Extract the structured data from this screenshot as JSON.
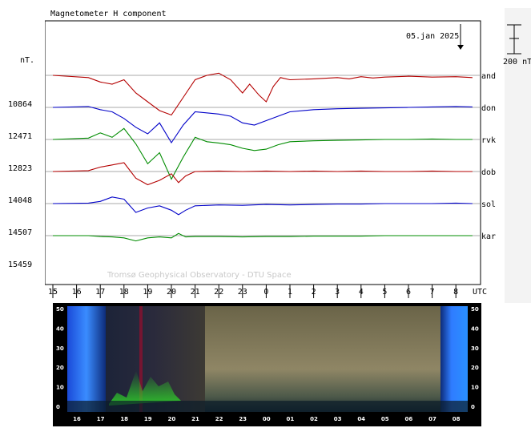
{
  "chart_data": {
    "type": "line",
    "title": "Magnetometer H component",
    "unit_label": "nT.",
    "scale_bar_label": "200 nT",
    "date_label": "05.jan 2025",
    "watermark": "Tromsø Geophysical Observatory - DTU Space",
    "x_ticks": [
      "15",
      "16",
      "17",
      "18",
      "19",
      "20",
      "21",
      "22",
      "23",
      "0",
      "1",
      "2",
      "3",
      "4",
      "5",
      "6",
      "7",
      "8"
    ],
    "x_unit": "UTC",
    "stations": [
      {
        "name": "and",
        "baseline": "",
        "color": "#b40000"
      },
      {
        "name": "don",
        "baseline": "10864",
        "color": "#0000c8"
      },
      {
        "name": "rvk",
        "baseline": "12471",
        "color": "#008c00"
      },
      {
        "name": "dob",
        "baseline": "12823",
        "color": "#b40000"
      },
      {
        "name": "sol",
        "baseline": "14048",
        "color": "#0000c8"
      },
      {
        "name": "kar",
        "baseline": "14507",
        "color": "#008c00"
      },
      {
        "name": "",
        "baseline": "15459",
        "color": "#000000"
      }
    ],
    "series_shape": {
      "and": [
        [
          15,
          0
        ],
        [
          16.5,
          -5
        ],
        [
          17,
          -15
        ],
        [
          17.5,
          -20
        ],
        [
          18,
          -10
        ],
        [
          18.5,
          -40
        ],
        [
          19,
          -60
        ],
        [
          19.5,
          -80
        ],
        [
          20,
          -90
        ],
        [
          20.5,
          -50
        ],
        [
          21,
          -10
        ],
        [
          21.5,
          0
        ],
        [
          22,
          5
        ],
        [
          22.5,
          -10
        ],
        [
          23,
          -40
        ],
        [
          23.3,
          -20
        ],
        [
          23.7,
          -45
        ],
        [
          24,
          -60
        ],
        [
          24.3,
          -25
        ],
        [
          24.6,
          -5
        ],
        [
          25,
          -10
        ],
        [
          26,
          -8
        ],
        [
          27,
          -5
        ],
        [
          27.5,
          -8
        ],
        [
          28,
          -3
        ],
        [
          28.5,
          -6
        ],
        [
          29,
          -4
        ],
        [
          30,
          -2
        ],
        [
          31,
          -4
        ],
        [
          32,
          -3
        ],
        [
          32.7,
          -5
        ]
      ],
      "don": [
        [
          15,
          0
        ],
        [
          16.5,
          2
        ],
        [
          17,
          -5
        ],
        [
          17.5,
          -10
        ],
        [
          18,
          -25
        ],
        [
          18.5,
          -45
        ],
        [
          19,
          -60
        ],
        [
          19.5,
          -35
        ],
        [
          20,
          -80
        ],
        [
          20.5,
          -40
        ],
        [
          21,
          -10
        ],
        [
          22,
          -15
        ],
        [
          22.5,
          -20
        ],
        [
          23,
          -35
        ],
        [
          23.5,
          -40
        ],
        [
          24,
          -30
        ],
        [
          24.5,
          -20
        ],
        [
          25,
          -10
        ],
        [
          26,
          -5
        ],
        [
          27,
          -3
        ],
        [
          28,
          -2
        ],
        [
          29,
          -1
        ],
        [
          30,
          0
        ],
        [
          31,
          1
        ],
        [
          32,
          2
        ],
        [
          32.7,
          1
        ]
      ],
      "rvk": [
        [
          15,
          0
        ],
        [
          16.5,
          3
        ],
        [
          17,
          15
        ],
        [
          17.5,
          5
        ],
        [
          18,
          25
        ],
        [
          18.5,
          -10
        ],
        [
          19,
          -55
        ],
        [
          19.5,
          -30
        ],
        [
          20,
          -90
        ],
        [
          20.5,
          -40
        ],
        [
          21,
          5
        ],
        [
          21.5,
          -5
        ],
        [
          22,
          -8
        ],
        [
          22.5,
          -12
        ],
        [
          23,
          -20
        ],
        [
          23.5,
          -25
        ],
        [
          24,
          -22
        ],
        [
          24.5,
          -12
        ],
        [
          25,
          -5
        ],
        [
          26,
          -3
        ],
        [
          27,
          -2
        ],
        [
          28,
          -1
        ],
        [
          29,
          0
        ],
        [
          30,
          0
        ],
        [
          31,
          1
        ],
        [
          32,
          0
        ],
        [
          32.7,
          0
        ]
      ],
      "dob": [
        [
          15,
          0
        ],
        [
          16.5,
          2
        ],
        [
          17,
          10
        ],
        [
          17.5,
          15
        ],
        [
          18,
          20
        ],
        [
          18.5,
          -15
        ],
        [
          19,
          -30
        ],
        [
          19.5,
          -20
        ],
        [
          20,
          -5
        ],
        [
          20.3,
          -25
        ],
        [
          20.6,
          -10
        ],
        [
          21,
          0
        ],
        [
          22,
          1
        ],
        [
          23,
          0
        ],
        [
          24,
          1
        ],
        [
          25,
          0
        ],
        [
          26,
          1
        ],
        [
          27,
          0
        ],
        [
          28,
          1
        ],
        [
          29,
          0
        ],
        [
          30,
          0
        ],
        [
          31,
          1
        ],
        [
          32,
          0
        ],
        [
          32.7,
          0
        ]
      ],
      "sol": [
        [
          15,
          0
        ],
        [
          16.5,
          1
        ],
        [
          17,
          5
        ],
        [
          17.5,
          15
        ],
        [
          18,
          10
        ],
        [
          18.5,
          -20
        ],
        [
          19,
          -10
        ],
        [
          19.5,
          -5
        ],
        [
          20,
          -15
        ],
        [
          20.3,
          -25
        ],
        [
          20.6,
          -15
        ],
        [
          21,
          -5
        ],
        [
          22,
          -3
        ],
        [
          23,
          -4
        ],
        [
          24,
          -2
        ],
        [
          25,
          -3
        ],
        [
          26,
          -2
        ],
        [
          27,
          -1
        ],
        [
          28,
          -1
        ],
        [
          29,
          0
        ],
        [
          30,
          0
        ],
        [
          31,
          0
        ],
        [
          32,
          1
        ],
        [
          32.7,
          0
        ]
      ],
      "kar": [
        [
          15,
          0
        ],
        [
          16.5,
          0
        ],
        [
          17,
          -2
        ],
        [
          17.5,
          -3
        ],
        [
          18,
          -5
        ],
        [
          18.5,
          -12
        ],
        [
          19,
          -5
        ],
        [
          19.5,
          -3
        ],
        [
          20,
          -5
        ],
        [
          20.3,
          5
        ],
        [
          20.6,
          -3
        ],
        [
          21,
          -2
        ],
        [
          22,
          -2
        ],
        [
          23,
          -3
        ],
        [
          24,
          -2
        ],
        [
          25,
          -2
        ],
        [
          26,
          -1
        ],
        [
          27,
          -1
        ],
        [
          28,
          -1
        ],
        [
          29,
          0
        ],
        [
          30,
          0
        ],
        [
          31,
          0
        ],
        [
          32,
          0
        ],
        [
          32.7,
          0
        ]
      ]
    },
    "keogram": {
      "x_ticks": [
        "16",
        "17",
        "18",
        "19",
        "20",
        "21",
        "22",
        "23",
        "00",
        "01",
        "02",
        "03",
        "04",
        "05",
        "06",
        "07",
        "08"
      ],
      "y_ticks": [
        "50",
        "40",
        "30",
        "20",
        "10",
        "0"
      ]
    }
  }
}
